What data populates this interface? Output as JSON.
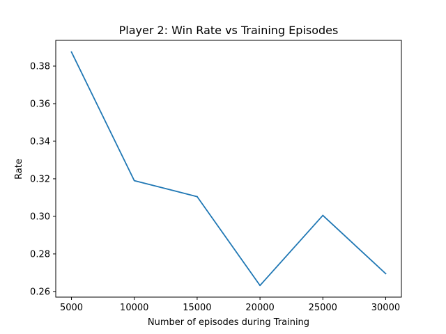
{
  "chart_data": {
    "type": "line",
    "title": "Player 2: Win Rate vs Training Episodes",
    "xlabel": "Number of episodes during Training",
    "ylabel": "Rate",
    "x": [
      5000,
      10000,
      15000,
      20000,
      25000,
      30000
    ],
    "series": [
      {
        "values": [
          0.3875,
          0.319,
          0.3105,
          0.2632,
          0.3005,
          0.2695
        ],
        "color": "#1f77b4"
      }
    ],
    "x_ticks": [
      5000,
      10000,
      15000,
      20000,
      25000,
      30000
    ],
    "x_tick_labels": [
      "5000",
      "10000",
      "15000",
      "20000",
      "25000",
      "30000"
    ],
    "y_ticks": [
      0.26,
      0.28,
      0.3,
      0.32,
      0.34,
      0.36,
      0.38
    ],
    "y_tick_labels": [
      "0.26",
      "0.28",
      "0.30",
      "0.32",
      "0.34",
      "0.36",
      "0.38"
    ],
    "xlim": [
      3750,
      31250
    ],
    "ylim": [
      0.257,
      0.3937
    ],
    "grid": false,
    "legend": "none"
  }
}
